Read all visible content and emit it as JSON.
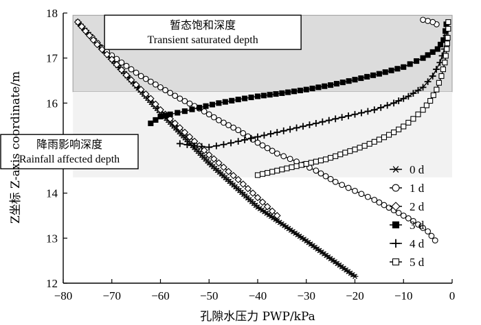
{
  "chart_data": {
    "type": "line",
    "xlabel": "孔隙水压力 PWP/kPa",
    "ylabel": "Z坐标 Z-axis coordinate/m",
    "xlim": [
      -80,
      0
    ],
    "ylim": [
      12,
      18
    ],
    "xticks": [
      "−80",
      "−70",
      "−60",
      "−50",
      "−40",
      "−30",
      "−20",
      "−10",
      "0"
    ],
    "yticks": [
      "12",
      "13",
      "14",
      "15",
      "16",
      "17",
      "18"
    ],
    "grid": false,
    "legend_position": "right",
    "shaded_regions": [
      {
        "x": [
          -78,
          0
        ],
        "y": [
          16.25,
          17.95
        ],
        "color": "#dcdcdc"
      },
      {
        "x": [
          -78,
          0
        ],
        "y": [
          14.35,
          16.25
        ],
        "color": "#f2f2f2"
      }
    ],
    "annotations": [
      {
        "lines": [
          "暂态饱和深度",
          "Transient saturated depth"
        ],
        "x": -71.5,
        "y": 17.8
      },
      {
        "lines": [
          "降雨影响深度",
          "Rainfall affected depth"
        ],
        "x": -79,
        "y": 15.15
      }
    ],
    "series": [
      {
        "name": "0 d",
        "marker": "star",
        "x": [
          -77,
          -70,
          -60,
          -50,
          -40,
          -30,
          -20
        ],
        "y": [
          17.8,
          16.97,
          15.79,
          14.67,
          13.69,
          12.94,
          12.15
        ]
      },
      {
        "name": "1 d",
        "marker": "circle",
        "x": [
          -74,
          -72,
          -68,
          -64,
          -60,
          -56,
          -52,
          -48,
          -44,
          -40,
          -36,
          -32,
          -28,
          -24,
          -20,
          -16,
          -12,
          -8,
          -5,
          -3.5,
          -3.2,
          -4,
          -6
        ],
        "y": [
          17.45,
          17.22,
          16.9,
          16.6,
          16.35,
          16.1,
          15.88,
          15.62,
          15.4,
          15.12,
          14.88,
          14.7,
          14.5,
          14.25,
          14.05,
          13.85,
          13.62,
          13.38,
          13.15,
          12.95,
          17.75,
          17.8,
          17.85
        ]
      },
      {
        "name": "2 d",
        "marker": "diamond",
        "x": [
          -77,
          -73,
          -70,
          -67,
          -64,
          -62,
          -60,
          -58,
          -56,
          -54,
          -52,
          -50,
          -48,
          -46,
          -44,
          -42,
          -40,
          -38,
          -36
        ],
        "y": [
          17.8,
          17.3,
          16.97,
          16.62,
          16.3,
          16.1,
          15.85,
          15.65,
          15.45,
          15.25,
          15.05,
          14.85,
          14.67,
          14.48,
          14.3,
          14.1,
          13.9,
          13.7,
          13.5
        ]
      },
      {
        "name": "3 d",
        "marker": "square-filled",
        "x": [
          -62,
          -60,
          -58,
          -55,
          -52,
          -48,
          -44,
          -40,
          -35,
          -30,
          -25,
          -20,
          -15,
          -10,
          -6,
          -3,
          -1.8,
          -1.4,
          -1.2
        ],
        "y": [
          15.55,
          15.7,
          15.75,
          15.82,
          15.9,
          16.0,
          16.08,
          16.15,
          16.22,
          16.3,
          16.4,
          16.52,
          16.65,
          16.8,
          17.0,
          17.2,
          17.4,
          17.6,
          17.75
        ]
      },
      {
        "name": "4 d",
        "marker": "plus",
        "x": [
          -56,
          -53,
          -50,
          -47,
          -44,
          -40,
          -36,
          -32,
          -28,
          -24,
          -20,
          -16,
          -12,
          -9,
          -6,
          -4,
          -2.5,
          -1.6,
          -1.2,
          -1.0
        ],
        "y": [
          15.1,
          15.05,
          15.02,
          15.08,
          15.15,
          15.25,
          15.35,
          15.45,
          15.55,
          15.65,
          15.75,
          15.85,
          16.0,
          16.15,
          16.35,
          16.6,
          16.9,
          17.2,
          17.5,
          17.75
        ]
      },
      {
        "name": "5 d",
        "marker": "square",
        "x": [
          -40,
          -38,
          -36,
          -34,
          -32,
          -30,
          -28,
          -26,
          -24,
          -22,
          -20,
          -18,
          -16,
          -14,
          -12,
          -10,
          -8,
          -6,
          -4.5,
          -3.2,
          -2.2,
          -1.5,
          -1.1,
          -0.9,
          -0.8,
          -0.8
        ],
        "y": [
          14.4,
          14.45,
          14.5,
          14.55,
          14.6,
          14.65,
          14.7,
          14.75,
          14.82,
          14.9,
          14.97,
          15.05,
          15.14,
          15.24,
          15.35,
          15.48,
          15.65,
          15.85,
          16.05,
          16.3,
          16.6,
          16.9,
          17.2,
          17.45,
          17.65,
          17.8
        ]
      }
    ]
  }
}
